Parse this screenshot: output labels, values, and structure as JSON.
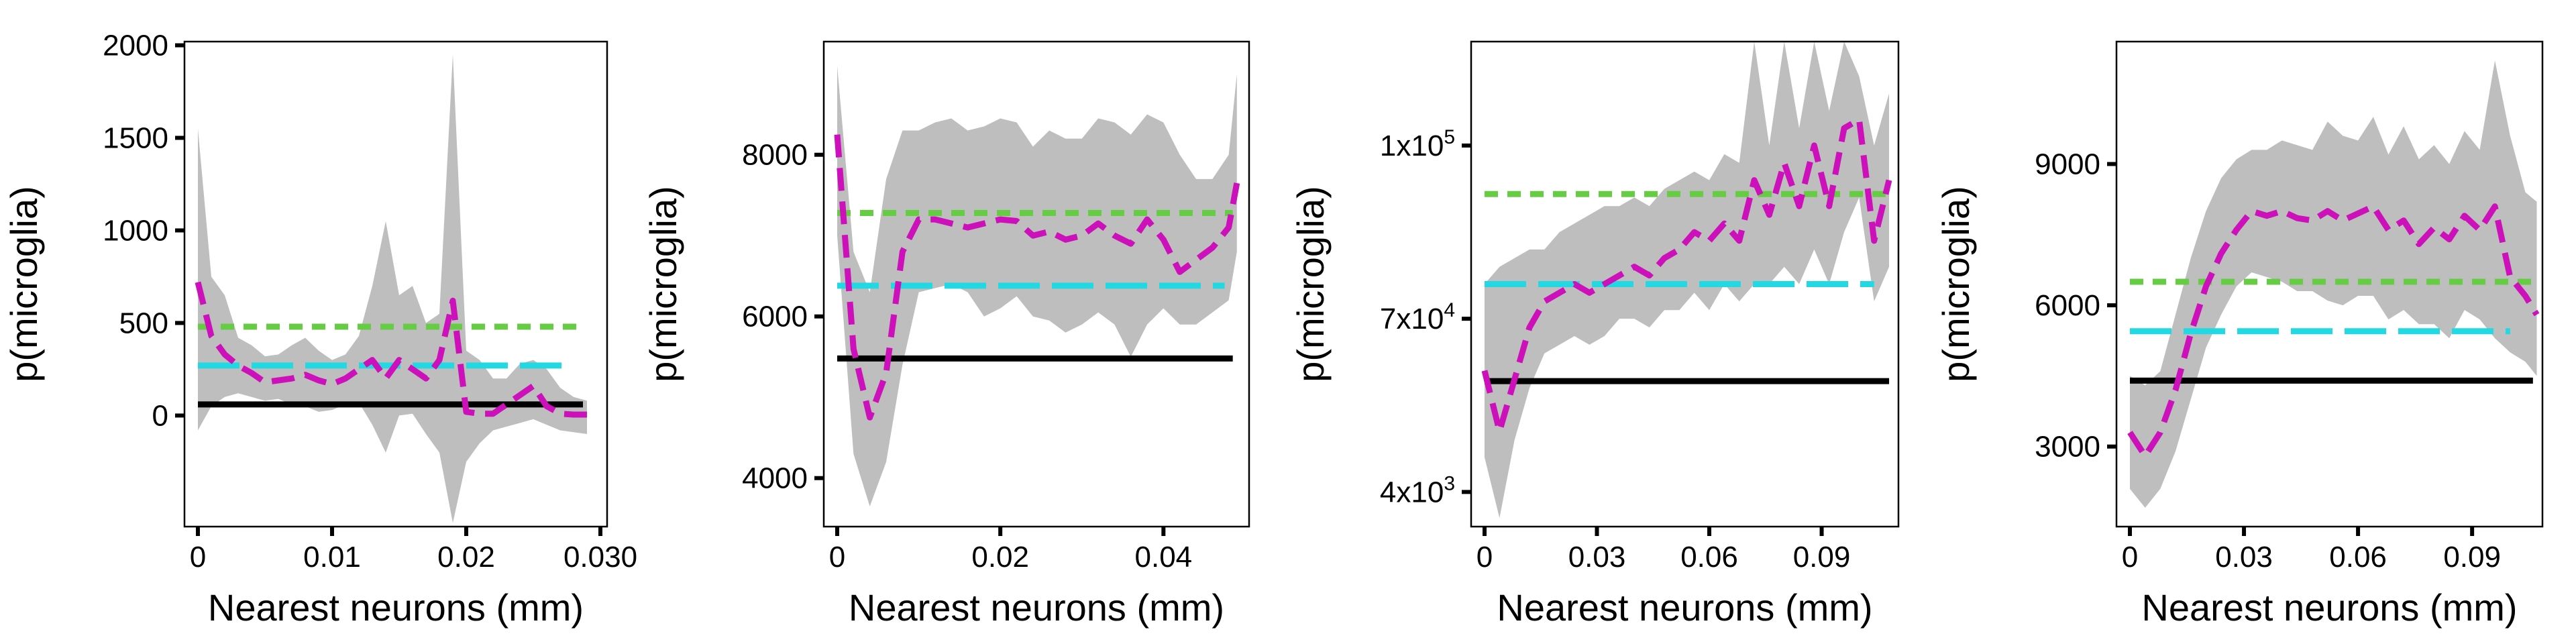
{
  "colors": {
    "band": "#bebebe",
    "black": "#000000",
    "cyan": "#22d9e3",
    "green": "#66cc44",
    "magenta": "#cc11bb"
  },
  "chart_data": [
    {
      "type": "line",
      "xlabel": "Nearest neurons (mm)",
      "ylabel": "p(microglia)",
      "xlim": [
        0,
        0.0305
      ],
      "ylim": [
        -600,
        2020
      ],
      "xticks": [
        {
          "v": 0,
          "label": "0"
        },
        {
          "v": 0.01,
          "label": "0.01"
        },
        {
          "v": 0.02,
          "label": "0.02"
        },
        {
          "v": 0.03,
          "label": "0.030"
        }
      ],
      "yticks": [
        {
          "v": 0,
          "label": "0"
        },
        {
          "v": 500,
          "label": "500"
        },
        {
          "v": 1000,
          "label": "1000"
        },
        {
          "v": 1500,
          "label": "1500"
        },
        {
          "v": 2000,
          "label": "2000"
        }
      ],
      "hlines": [
        {
          "name": "black reference",
          "y": 60,
          "x": [
            0,
            0.0287
          ]
        },
        {
          "name": "cyan reference",
          "y": 270,
          "x": [
            0,
            0.0275
          ]
        },
        {
          "name": "green reference",
          "y": 480,
          "x": [
            0,
            0.0287
          ]
        }
      ],
      "series_x": [
        0,
        0.001,
        0.002,
        0.003,
        0.004,
        0.005,
        0.006,
        0.007,
        0.008,
        0.009,
        0.01,
        0.011,
        0.012,
        0.013,
        0.014,
        0.015,
        0.016,
        0.017,
        0.018,
        0.019,
        0.02,
        0.021,
        0.022,
        0.023,
        0.024,
        0.025,
        0.026,
        0.027,
        0.028,
        0.029
      ],
      "estimate": [
        720,
        430,
        330,
        270,
        230,
        180,
        190,
        200,
        220,
        190,
        170,
        200,
        250,
        300,
        200,
        300,
        250,
        200,
        300,
        620,
        20,
        10,
        10,
        60,
        110,
        160,
        50,
        10,
        5,
        5
      ],
      "band_upper": [
        1550,
        750,
        650,
        420,
        380,
        320,
        330,
        380,
        420,
        350,
        300,
        330,
        430,
        700,
        1050,
        650,
        700,
        500,
        550,
        1950,
        350,
        300,
        200,
        200,
        280,
        300,
        250,
        150,
        100,
        80
      ],
      "band_lower": [
        -80,
        50,
        100,
        120,
        100,
        80,
        90,
        60,
        50,
        20,
        30,
        60,
        70,
        -50,
        -200,
        0,
        10,
        -100,
        -200,
        -580,
        -250,
        -150,
        -80,
        -60,
        -40,
        -20,
        -50,
        -80,
        -90,
        -100
      ]
    },
    {
      "type": "line",
      "xlabel": "Nearest neurons (mm)",
      "ylabel": "p(microglia)",
      "xlim": [
        0,
        0.0505
      ],
      "ylim": [
        3400,
        9400
      ],
      "xticks": [
        {
          "v": 0,
          "label": "0"
        },
        {
          "v": 0.02,
          "label": "0.02"
        },
        {
          "v": 0.04,
          "label": "0.04"
        }
      ],
      "yticks": [
        {
          "v": 4000,
          "label": "4000"
        },
        {
          "v": 6000,
          "label": "6000"
        },
        {
          "v": 8000,
          "label": "8000"
        }
      ],
      "hlines": [
        {
          "name": "black reference",
          "y": 5480,
          "x": [
            0,
            0.0485
          ]
        },
        {
          "name": "cyan reference",
          "y": 6380,
          "x": [
            0,
            0.0475
          ]
        },
        {
          "name": "green reference",
          "y": 7280,
          "x": [
            0,
            0.0485
          ]
        }
      ],
      "series_x": [
        0,
        0.002,
        0.004,
        0.006,
        0.008,
        0.01,
        0.012,
        0.014,
        0.016,
        0.018,
        0.02,
        0.022,
        0.024,
        0.026,
        0.028,
        0.03,
        0.032,
        0.034,
        0.036,
        0.038,
        0.04,
        0.042,
        0.044,
        0.046,
        0.048,
        0.049
      ],
      "estimate": [
        8250,
        5600,
        4750,
        5300,
        6800,
        7200,
        7200,
        7150,
        7100,
        7150,
        7200,
        7180,
        7000,
        7050,
        6950,
        7000,
        7150,
        7000,
        6900,
        7200,
        6950,
        6550,
        6700,
        6850,
        7100,
        7650
      ],
      "band_upper": [
        9100,
        6800,
        6300,
        7700,
        8300,
        8300,
        8400,
        8450,
        8300,
        8350,
        8450,
        8400,
        8100,
        8300,
        8200,
        8200,
        8450,
        8400,
        8250,
        8500,
        8400,
        8000,
        7700,
        7700,
        8000,
        9000
      ],
      "band_lower": [
        7000,
        4300,
        3650,
        4200,
        5400,
        6300,
        6350,
        6400,
        6300,
        6000,
        6100,
        6250,
        6000,
        5950,
        5800,
        5900,
        6050,
        5900,
        5500,
        5900,
        6100,
        5900,
        5900,
        6050,
        6200,
        6800
      ]
    },
    {
      "type": "line",
      "xlabel": "Nearest neurons (mm)",
      "ylabel": "p(microglia)",
      "xlim": [
        0,
        0.1105
      ],
      "ylim": [
        -700,
        2100
      ],
      "yscale_note": "nonlinear: tick labels 4x10^3, 7x10^4, 1x10^5 placed at equal spacing",
      "xticks": [
        {
          "v": 0,
          "label": "0"
        },
        {
          "v": 0.03,
          "label": "0.03"
        },
        {
          "v": 0.06,
          "label": "0.06"
        },
        {
          "v": 0.09,
          "label": "0.09"
        }
      ],
      "yticks": [
        {
          "v": -500,
          "label": "4x10",
          "sup": "3"
        },
        {
          "v": 500,
          "label": "7x10",
          "sup": "4"
        },
        {
          "v": 1500,
          "label": "1x10",
          "sup": "5"
        }
      ],
      "hlines": [
        {
          "name": "black reference",
          "y": 140,
          "x": [
            0,
            0.108
          ]
        },
        {
          "name": "cyan reference",
          "y": 700,
          "x": [
            0,
            0.104
          ]
        },
        {
          "name": "green reference",
          "y": 1220,
          "x": [
            0,
            0.108
          ]
        }
      ],
      "series_x": [
        0,
        0.004,
        0.008,
        0.012,
        0.016,
        0.02,
        0.024,
        0.028,
        0.032,
        0.036,
        0.04,
        0.044,
        0.048,
        0.052,
        0.056,
        0.06,
        0.064,
        0.068,
        0.072,
        0.076,
        0.08,
        0.084,
        0.088,
        0.092,
        0.096,
        0.1,
        0.104,
        0.108
      ],
      "estimate": [
        200,
        -150,
        150,
        450,
        600,
        650,
        700,
        650,
        700,
        750,
        800,
        750,
        850,
        900,
        1000,
        950,
        1050,
        950,
        1300,
        1100,
        1400,
        1150,
        1500,
        1150,
        1600,
        1650,
        950,
        1300
      ],
      "band_upper": [
        700,
        800,
        850,
        900,
        900,
        1000,
        1050,
        1100,
        1150,
        1150,
        1200,
        1150,
        1250,
        1300,
        1350,
        1300,
        1450,
        1400,
        2100,
        1500,
        2100,
        1600,
        2100,
        1700,
        2100,
        1900,
        1500,
        1800
      ],
      "band_lower": [
        -300,
        -650,
        -200,
        100,
        300,
        350,
        400,
        350,
        400,
        500,
        500,
        450,
        550,
        550,
        650,
        550,
        700,
        600,
        700,
        700,
        800,
        700,
        900,
        700,
        1000,
        1200,
        600,
        800
      ]
    },
    {
      "type": "line",
      "xlabel": "Nearest neurons (mm)",
      "ylabel": "p(microglia)",
      "xlim": [
        0,
        0.1085
      ],
      "ylim": [
        1300,
        11600
      ],
      "xticks": [
        {
          "v": 0,
          "label": "0"
        },
        {
          "v": 0.03,
          "label": "0.03"
        },
        {
          "v": 0.06,
          "label": "0.06"
        },
        {
          "v": 0.09,
          "label": "0.09"
        }
      ],
      "yticks": [
        {
          "v": 3000,
          "label": "3000"
        },
        {
          "v": 6000,
          "label": "6000"
        },
        {
          "v": 9000,
          "label": "9000"
        }
      ],
      "hlines": [
        {
          "name": "black reference",
          "y": 4400,
          "x": [
            0,
            0.106
          ]
        },
        {
          "name": "cyan reference",
          "y": 5450,
          "x": [
            0,
            0.1
          ]
        },
        {
          "name": "green reference",
          "y": 6500,
          "x": [
            0,
            0.106
          ]
        }
      ],
      "series_x": [
        0,
        0.004,
        0.008,
        0.012,
        0.016,
        0.02,
        0.024,
        0.028,
        0.032,
        0.036,
        0.04,
        0.044,
        0.048,
        0.052,
        0.056,
        0.06,
        0.064,
        0.068,
        0.072,
        0.076,
        0.08,
        0.084,
        0.088,
        0.092,
        0.096,
        0.1,
        0.104,
        0.107
      ],
      "estimate": [
        3300,
        2800,
        3300,
        4200,
        5400,
        6400,
        7100,
        7600,
        8000,
        7900,
        8000,
        7850,
        7800,
        8000,
        7800,
        7950,
        8100,
        7600,
        7800,
        7300,
        7650,
        7400,
        7900,
        7600,
        8100,
        6600,
        6200,
        5800
      ],
      "band_upper": [
        4500,
        4300,
        4600,
        5800,
        7000,
        8000,
        8700,
        9100,
        9300,
        9300,
        9500,
        9400,
        9300,
        9900,
        9600,
        9500,
        10000,
        9200,
        9800,
        9100,
        9400,
        9000,
        9700,
        9300,
        11200,
        9600,
        8400,
        8200
      ],
      "band_lower": [
        2100,
        1700,
        2100,
        2900,
        4000,
        5100,
        5800,
        6400,
        6700,
        6600,
        6500,
        6300,
        6300,
        6100,
        6000,
        6200,
        6200,
        5700,
        5900,
        5600,
        5600,
        5300,
        5900,
        5700,
        5300,
        5000,
        4800,
        4500
      ]
    }
  ]
}
